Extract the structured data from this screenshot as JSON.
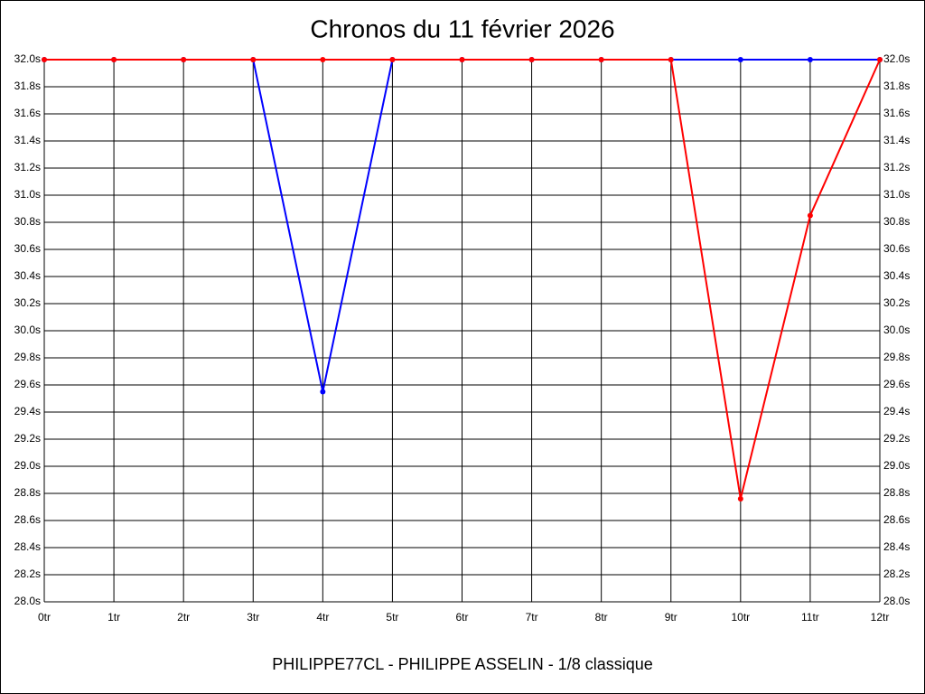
{
  "chart_data": {
    "type": "line",
    "title": "Chronos du 11 février 2026",
    "x_label": "PHILIPPE77CL - PHILIPPE ASSELIN - 1/8 classique",
    "categories": [
      "0tr",
      "1tr",
      "2tr",
      "3tr",
      "4tr",
      "5tr",
      "6tr",
      "7tr",
      "8tr",
      "9tr",
      "10tr",
      "11tr",
      "12tr"
    ],
    "series": [
      {
        "name": "blue",
        "color": "#0000ff",
        "values": [
          32.0,
          32.0,
          32.0,
          32.0,
          29.55,
          32.0,
          32.0,
          32.0,
          32.0,
          32.0,
          32.0,
          32.0,
          32.0
        ]
      },
      {
        "name": "red",
        "color": "#ff0000",
        "values": [
          32.0,
          32.0,
          32.0,
          32.0,
          32.0,
          32.0,
          32.0,
          32.0,
          32.0,
          32.0,
          28.76,
          30.85,
          32.0
        ]
      }
    ],
    "ylim": [
      28.0,
      32.0
    ],
    "yticks": [
      {
        "value": 28.0,
        "label": "28.0s"
      },
      {
        "value": 28.2,
        "label": "28.2s"
      },
      {
        "value": 28.4,
        "label": "28.4s"
      },
      {
        "value": 28.6,
        "label": "28.6s"
      },
      {
        "value": 28.8,
        "label": "28.8s"
      },
      {
        "value": 29.0,
        "label": "29.0s"
      },
      {
        "value": 29.2,
        "label": "29.2s"
      },
      {
        "value": 29.4,
        "label": "29.4s"
      },
      {
        "value": 29.6,
        "label": "29.6s"
      },
      {
        "value": 29.8,
        "label": "29.8s"
      },
      {
        "value": 30.0,
        "label": "30.0s"
      },
      {
        "value": 30.2,
        "label": "30.2s"
      },
      {
        "value": 30.4,
        "label": "30.4s"
      },
      {
        "value": 30.6,
        "label": "30.6s"
      },
      {
        "value": 30.8,
        "label": "30.8s"
      },
      {
        "value": 31.0,
        "label": "31.0s"
      },
      {
        "value": 31.2,
        "label": "31.2s"
      },
      {
        "value": 31.4,
        "label": "31.4s"
      },
      {
        "value": 31.6,
        "label": "31.6s"
      },
      {
        "value": 31.8,
        "label": "31.8s"
      },
      {
        "value": 32.0,
        "label": "32.0s"
      }
    ],
    "grid": true
  }
}
